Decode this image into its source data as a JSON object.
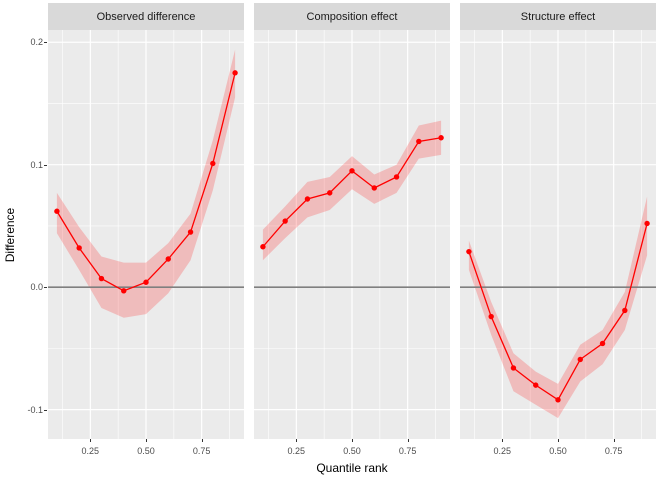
{
  "chart_data": {
    "type": "line",
    "xlabel": "Quantile rank",
    "ylabel": "Difference",
    "x": [
      0.1,
      0.2,
      0.3,
      0.4,
      0.5,
      0.6,
      0.7,
      0.8,
      0.9
    ],
    "x_tick_labels": [
      "0.25",
      "0.50",
      "0.75"
    ],
    "x_tick_values": [
      0.25,
      0.5,
      0.75
    ],
    "x_minor_values": [
      0.125,
      0.375,
      0.625,
      0.875
    ],
    "y_tick_labels": [
      "0.2",
      "0.1",
      "0.0",
      "-0.1"
    ],
    "y_tick_values": [
      0.2,
      0.1,
      0.0,
      -0.1
    ],
    "y_minor_values": [
      0.15,
      0.05,
      -0.05
    ],
    "xlim": [
      0.06,
      0.94
    ],
    "ylim": [
      -0.124,
      0.21
    ],
    "ref_line_y": 0.0,
    "grid": true,
    "legend": "none",
    "facets": [
      {
        "label": "Observed difference",
        "y": [
          0.062,
          0.032,
          0.007,
          -0.003,
          0.004,
          0.023,
          0.045,
          0.101,
          0.175
        ],
        "upper": [
          0.077,
          0.049,
          0.025,
          0.02,
          0.02,
          0.036,
          0.06,
          0.12,
          0.194
        ],
        "lower": [
          0.044,
          0.014,
          -0.017,
          -0.025,
          -0.022,
          -0.005,
          0.022,
          0.079,
          0.155
        ]
      },
      {
        "label": "Composition effect",
        "y": [
          0.033,
          0.054,
          0.072,
          0.077,
          0.095,
          0.081,
          0.09,
          0.119,
          0.122
        ],
        "upper": [
          0.047,
          0.066,
          0.086,
          0.09,
          0.107,
          0.092,
          0.1,
          0.132,
          0.136
        ],
        "lower": [
          0.022,
          0.04,
          0.057,
          0.063,
          0.08,
          0.068,
          0.077,
          0.105,
          0.108
        ]
      },
      {
        "label": "Structure effect",
        "y": [
          0.029,
          -0.024,
          -0.066,
          -0.08,
          -0.092,
          -0.059,
          -0.046,
          -0.019,
          0.052
        ],
        "upper": [
          0.038,
          -0.012,
          -0.054,
          -0.069,
          -0.079,
          -0.047,
          -0.035,
          -0.004,
          0.074
        ],
        "lower": [
          0.014,
          -0.039,
          -0.085,
          -0.096,
          -0.107,
          -0.077,
          -0.063,
          -0.035,
          0.026
        ]
      }
    ],
    "colors": {
      "line": "#FF0000",
      "ribbon": "#FF0000",
      "ribbon_opacity": 0.2,
      "panel_bg": "#EBEBEB",
      "strip_bg": "#D9D9D9",
      "grid": "#FFFFFF",
      "ref_line": "#7F7F7F",
      "tick_label": "#4D4D4D",
      "strip_text": "#1A1A1A",
      "axis_title": "#000000",
      "tick_mark": "#333333"
    }
  }
}
